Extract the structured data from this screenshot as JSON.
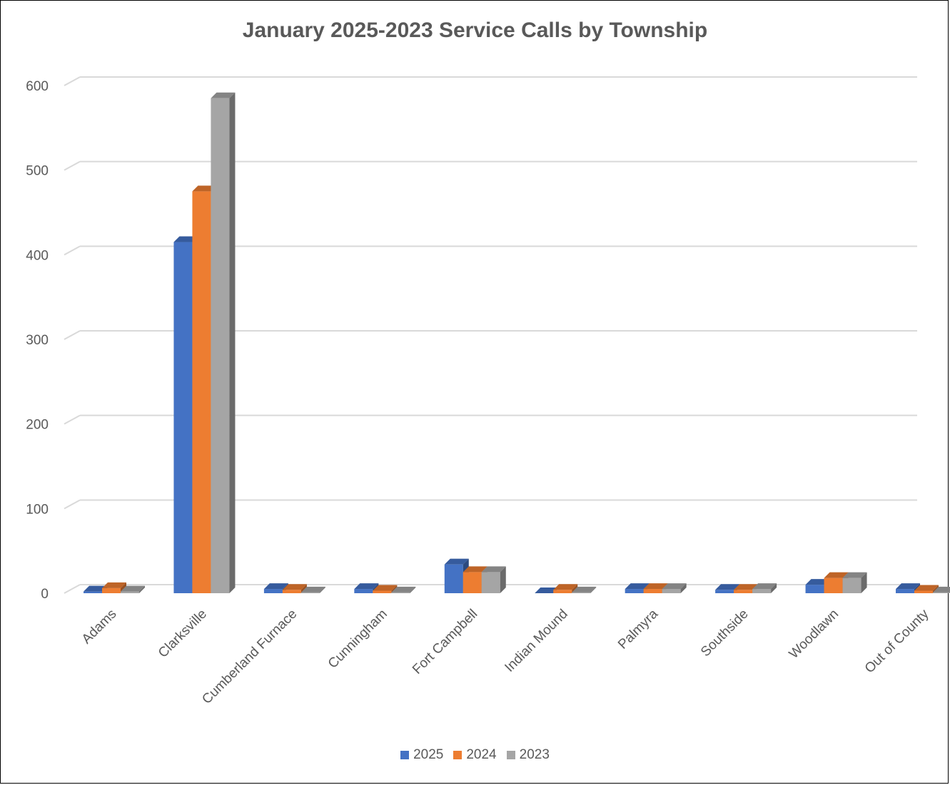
{
  "chart_data": {
    "type": "bar",
    "title": "January 2025-2023 Service Calls by Township",
    "xlabel": "",
    "ylabel": "",
    "ylim": [
      0,
      600
    ],
    "yticks": [
      0,
      100,
      200,
      300,
      400,
      500,
      600
    ],
    "categories": [
      "Adams",
      "Clarksville",
      "Cumberland Furnace",
      "Cunningham",
      "Fort Campbell",
      "Indian Mound",
      "Palmyra",
      "Southside",
      "Woodlawn",
      "Out of County"
    ],
    "series": [
      {
        "name": "2025",
        "color": "#4472C4",
        "values": [
          2,
          415,
          5,
          5,
          34,
          0,
          5,
          4,
          10,
          5
        ]
      },
      {
        "name": "2024",
        "color": "#ED7D31",
        "values": [
          6,
          475,
          4,
          3,
          25,
          4,
          5,
          4,
          18,
          3
        ]
      },
      {
        "name": "2023",
        "color": "#A5A5A5",
        "values": [
          2,
          585,
          1,
          1,
          25,
          1,
          5,
          5,
          18,
          1
        ]
      }
    ],
    "grid": true,
    "legend_position": "bottom",
    "style": "3d-clustered-column"
  }
}
